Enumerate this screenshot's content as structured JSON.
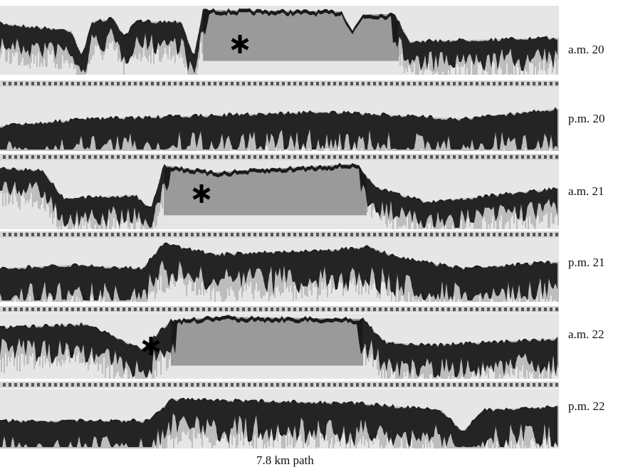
{
  "strips": [
    {
      "label": "a.m. 20"
    },
    {
      "label": "p.m. 20"
    },
    {
      "label": "a.m. 21"
    },
    {
      "label": "p.m. 21"
    },
    {
      "label": "a.m. 22"
    },
    {
      "label": "p.m. 22"
    }
  ],
  "caption": "7.8 km path"
}
